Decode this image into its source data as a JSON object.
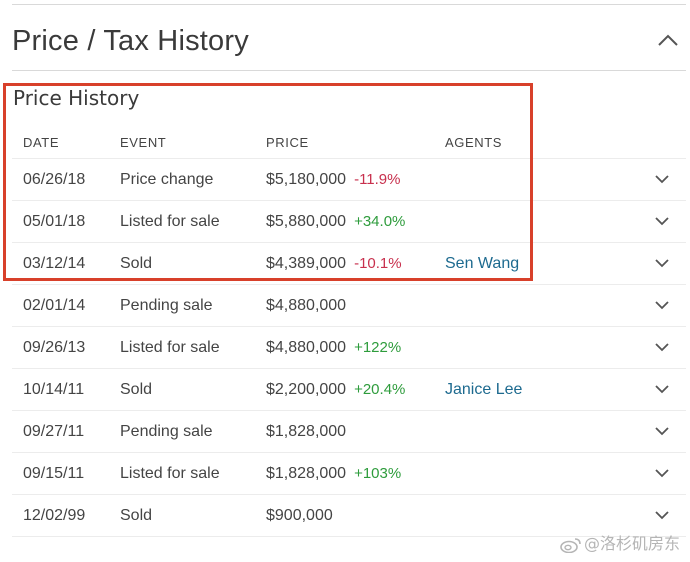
{
  "section": {
    "title": "Price / Tax History"
  },
  "price_history": {
    "title": "Price History",
    "columns": [
      "DATE",
      "EVENT",
      "PRICE",
      "AGENTS"
    ],
    "rows": [
      {
        "date": "06/26/18",
        "event": "Price change",
        "price": "$5,180,000",
        "change": "-11.9%",
        "direction": "neg",
        "agent": ""
      },
      {
        "date": "05/01/18",
        "event": "Listed for sale",
        "price": "$5,880,000",
        "change": "+34.0%",
        "direction": "pos",
        "agent": ""
      },
      {
        "date": "03/12/14",
        "event": "Sold",
        "price": "$4,389,000",
        "change": "-10.1%",
        "direction": "neg",
        "agent": "Sen Wang"
      },
      {
        "date": "02/01/14",
        "event": "Pending sale",
        "price": "$4,880,000",
        "change": "",
        "direction": "",
        "agent": ""
      },
      {
        "date": "09/26/13",
        "event": "Listed for sale",
        "price": "$4,880,000",
        "change": "+122%",
        "direction": "pos",
        "agent": ""
      },
      {
        "date": "10/14/11",
        "event": "Sold",
        "price": "$2,200,000",
        "change": "+20.4%",
        "direction": "pos",
        "agent": "Janice Lee"
      },
      {
        "date": "09/27/11",
        "event": "Pending sale",
        "price": "$1,828,000",
        "change": "",
        "direction": "",
        "agent": ""
      },
      {
        "date": "09/15/11",
        "event": "Listed for sale",
        "price": "$1,828,000",
        "change": "+103%",
        "direction": "pos",
        "agent": ""
      },
      {
        "date": "12/02/99",
        "event": "Sold",
        "price": "$900,000",
        "change": "",
        "direction": "",
        "agent": ""
      }
    ]
  },
  "watermark": {
    "text": "@洛杉矶房东"
  },
  "icons": {
    "collapse": "chevron-up-icon",
    "expand_row": "chevron-down-icon",
    "watermark_logo": "weibo-logo-icon"
  },
  "colors": {
    "positive": "#2e9c3c",
    "negative": "#c8304d",
    "agent_link": "#1d6a8f",
    "highlight": "#d8402a"
  }
}
